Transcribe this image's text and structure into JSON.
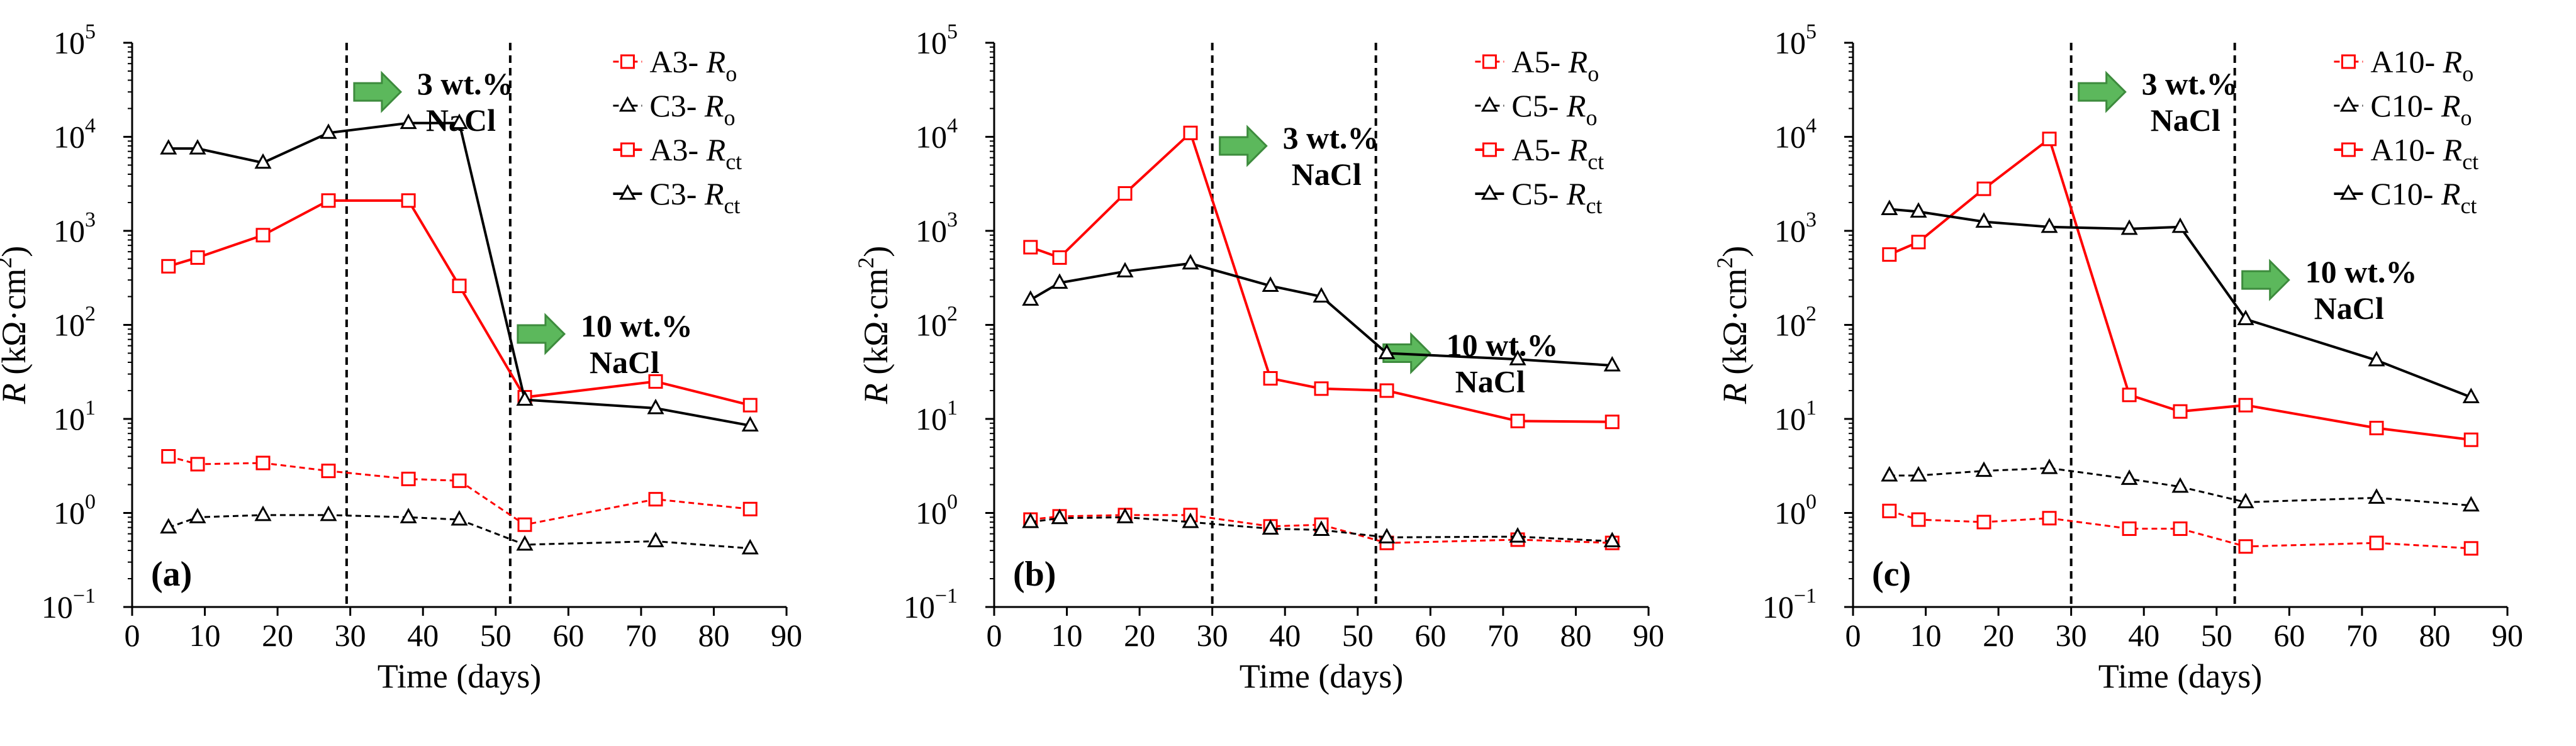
{
  "chart_data": [
    {
      "type": "line",
      "panel_label": "(a)",
      "xlabel": "Time (days)",
      "ylabel_prefix": "R",
      "ylabel_unit": "(kΩ·cm",
      "ylabel_unit_sup": "2",
      "ylabel_unit_close": ")",
      "xlim": [
        0,
        90
      ],
      "ylim": [
        0.1,
        100000
      ],
      "y_scale": "log",
      "x_ticks": [
        "0",
        "10",
        "20",
        "30",
        "40",
        "50",
        "60",
        "70",
        "80",
        "90"
      ],
      "y_ticks": [
        {
          "base": "10",
          "exp": "−1"
        },
        {
          "base": "10",
          "exp": "0"
        },
        {
          "base": "10",
          "exp": "1"
        },
        {
          "base": "10",
          "exp": "2"
        },
        {
          "base": "10",
          "exp": "3"
        },
        {
          "base": "10",
          "exp": "4"
        },
        {
          "base": "10",
          "exp": "5"
        }
      ],
      "vlines": [
        29.5,
        52
      ],
      "annotations": [
        {
          "line1": "3 wt.%",
          "line2": "NaCl",
          "x": 29.5,
          "y": 30000
        },
        {
          "line1": "10 wt.%",
          "line2": "NaCl",
          "x": 52,
          "y": 80
        }
      ],
      "series": [
        {
          "name": "A3-",
          "sub": "o",
          "color": "#ff0000",
          "dashed": true,
          "marker": "square",
          "x": [
            5,
            9,
            18,
            27,
            38,
            45,
            54,
            72,
            85
          ],
          "y": [
            4.0,
            3.3,
            3.4,
            2.8,
            2.3,
            2.2,
            0.75,
            1.4,
            1.1
          ]
        },
        {
          "name": "C3-",
          "sub": "o",
          "color": "#000000",
          "dashed": true,
          "marker": "triangle",
          "x": [
            5,
            9,
            18,
            27,
            38,
            45,
            54,
            72,
            85
          ],
          "y": [
            0.7,
            0.9,
            0.95,
            0.95,
            0.9,
            0.85,
            0.46,
            0.5,
            0.42
          ]
        },
        {
          "name": "A3-",
          "sub": "ct",
          "color": "#ff0000",
          "dashed": false,
          "marker": "square",
          "x": [
            5,
            9,
            18,
            27,
            38,
            45,
            54,
            72,
            85
          ],
          "y": [
            420,
            520,
            900,
            2100,
            2100,
            260,
            17,
            25,
            14
          ]
        },
        {
          "name": "C3-",
          "sub": "ct",
          "color": "#000000",
          "dashed": false,
          "marker": "triangle",
          "x": [
            5,
            9,
            18,
            27,
            38,
            45,
            54,
            72,
            85
          ],
          "y": [
            7500,
            7500,
            5300,
            11000,
            14000,
            14000,
            16,
            13,
            8.5
          ]
        }
      ]
    },
    {
      "type": "line",
      "panel_label": "(b)",
      "xlabel": "Time (days)",
      "ylabel_prefix": "R",
      "ylabel_unit": "(kΩ·cm",
      "ylabel_unit_sup": "2",
      "ylabel_unit_close": ")",
      "xlim": [
        0,
        90
      ],
      "ylim": [
        0.1,
        100000
      ],
      "y_scale": "log",
      "x_ticks": [
        "0",
        "10",
        "20",
        "30",
        "40",
        "50",
        "60",
        "70",
        "80",
        "90"
      ],
      "y_ticks": [
        {
          "base": "10",
          "exp": "−1"
        },
        {
          "base": "10",
          "exp": "0"
        },
        {
          "base": "10",
          "exp": "1"
        },
        {
          "base": "10",
          "exp": "2"
        },
        {
          "base": "10",
          "exp": "3"
        },
        {
          "base": "10",
          "exp": "4"
        },
        {
          "base": "10",
          "exp": "5"
        }
      ],
      "vlines": [
        30,
        52.5
      ],
      "annotations": [
        {
          "line1": "3 wt.%",
          "line2": "NaCl",
          "x": 30,
          "y": 8000
        },
        {
          "line1": "10 wt.%",
          "line2": "NaCl",
          "x": 52.5,
          "y": 50
        }
      ],
      "series": [
        {
          "name": "A5-",
          "sub": "o",
          "color": "#ff0000",
          "dashed": true,
          "marker": "square",
          "x": [
            5,
            9,
            18,
            27,
            38,
            45,
            54,
            72,
            85
          ],
          "y": [
            0.85,
            0.92,
            0.95,
            0.95,
            0.72,
            0.75,
            0.48,
            0.52,
            0.48
          ]
        },
        {
          "name": "C5-",
          "sub": "o",
          "color": "#000000",
          "dashed": true,
          "marker": "triangle",
          "x": [
            5,
            9,
            18,
            27,
            38,
            45,
            54,
            72,
            85
          ],
          "y": [
            0.8,
            0.88,
            0.9,
            0.8,
            0.68,
            0.66,
            0.55,
            0.56,
            0.5
          ]
        },
        {
          "name": "A5-",
          "sub": "ct",
          "color": "#ff0000",
          "dashed": false,
          "marker": "square",
          "x": [
            5,
            9,
            18,
            27,
            38,
            45,
            54,
            72,
            85
          ],
          "y": [
            670,
            520,
            2500,
            11000,
            27,
            21,
            20,
            9.5,
            9.3
          ]
        },
        {
          "name": "C5-",
          "sub": "ct",
          "color": "#000000",
          "dashed": false,
          "marker": "triangle",
          "x": [
            5,
            9,
            18,
            27,
            38,
            45,
            54,
            72,
            85
          ],
          "y": [
            185,
            280,
            370,
            450,
            260,
            200,
            50,
            43,
            37
          ]
        }
      ]
    },
    {
      "type": "line",
      "panel_label": "(c)",
      "xlabel": "Time (days)",
      "ylabel_prefix": "R",
      "ylabel_unit": "(kΩ·cm",
      "ylabel_unit_sup": "2",
      "ylabel_unit_close": ")",
      "xlim": [
        0,
        90
      ],
      "ylim": [
        0.1,
        100000
      ],
      "y_scale": "log",
      "x_ticks": [
        "0",
        "10",
        "20",
        "30",
        "40",
        "50",
        "60",
        "70",
        "80",
        "90"
      ],
      "y_ticks": [
        {
          "base": "10",
          "exp": "−1"
        },
        {
          "base": "10",
          "exp": "0"
        },
        {
          "base": "10",
          "exp": "1"
        },
        {
          "base": "10",
          "exp": "2"
        },
        {
          "base": "10",
          "exp": "3"
        },
        {
          "base": "10",
          "exp": "4"
        },
        {
          "base": "10",
          "exp": "5"
        }
      ],
      "vlines": [
        30,
        52.5
      ],
      "annotations": [
        {
          "line1": "3 wt.%",
          "line2": "NaCl",
          "x": 30,
          "y": 30000
        },
        {
          "line1": "10 wt.%",
          "line2": "NaCl",
          "x": 52.5,
          "y": 300
        }
      ],
      "series": [
        {
          "name": "A10-",
          "sub": "o",
          "color": "#ff0000",
          "dashed": true,
          "marker": "square",
          "x": [
            5,
            9,
            18,
            27,
            38,
            45,
            54,
            72,
            85
          ],
          "y": [
            1.05,
            0.85,
            0.8,
            0.88,
            0.68,
            0.68,
            0.44,
            0.48,
            0.42
          ]
        },
        {
          "name": "C10-",
          "sub": "o",
          "color": "#000000",
          "dashed": true,
          "marker": "triangle",
          "x": [
            5,
            9,
            18,
            27,
            38,
            45,
            54,
            72,
            85
          ],
          "y": [
            2.5,
            2.5,
            2.8,
            3.0,
            2.3,
            1.9,
            1.3,
            1.45,
            1.2
          ]
        },
        {
          "name": "A10-",
          "sub": "ct",
          "color": "#ff0000",
          "dashed": false,
          "marker": "square",
          "x": [
            5,
            9,
            18,
            27,
            38,
            45,
            54,
            72,
            85
          ],
          "y": [
            560,
            760,
            2800,
            9500,
            18,
            12,
            14,
            8,
            6
          ]
        },
        {
          "name": "C10-",
          "sub": "ct",
          "color": "#000000",
          "dashed": false,
          "marker": "triangle",
          "x": [
            5,
            9,
            18,
            27,
            38,
            45,
            54,
            72,
            85
          ],
          "y": [
            1700,
            1600,
            1250,
            1100,
            1050,
            1100,
            115,
            42,
            17
          ]
        }
      ]
    }
  ],
  "colors": {
    "red": "#ff0000",
    "black": "#000000",
    "arrow_fill": "#5cb85c",
    "arrow_stroke": "#3d8b3d"
  }
}
